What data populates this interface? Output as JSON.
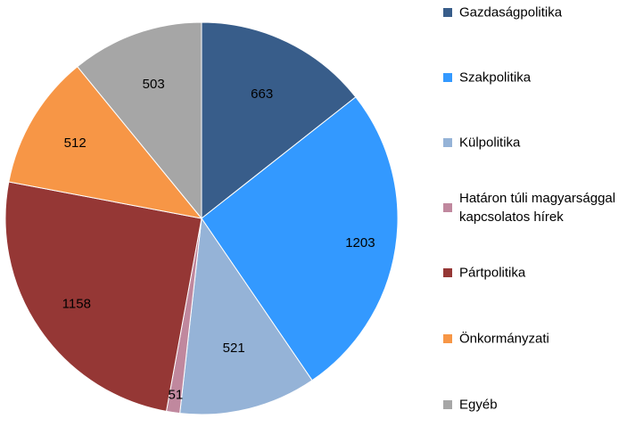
{
  "chart_data": {
    "type": "pie",
    "title": "",
    "categories": [
      "Gazdaságpolitika",
      "Szakpolitika",
      "Külpolitika",
      "Határon túli magyarsággal kapcsolatos hírek",
      "Pártpolitika",
      "Önkormányzati",
      "Egyéb"
    ],
    "values": [
      663,
      1203,
      521,
      51,
      1158,
      512,
      503
    ],
    "colors": [
      "#385d8a",
      "#3399ff",
      "#95b3d7",
      "#c0889e",
      "#953735",
      "#f79646",
      "#a6a6a6"
    ],
    "legend_lines": [
      [
        "Gazdaságpolitika"
      ],
      [
        "Szakpolitika"
      ],
      [
        "Külpolitika"
      ],
      [
        "Határon túli magyarsággal",
        "kapcsolatos hírek"
      ],
      [
        "Pártpolitika"
      ],
      [
        "Önkormányzati"
      ],
      [
        "Egyéb"
      ]
    ],
    "legend_position": "right",
    "data_labels": true,
    "start_angle": "12 o'clock",
    "direction": "clockwise"
  }
}
